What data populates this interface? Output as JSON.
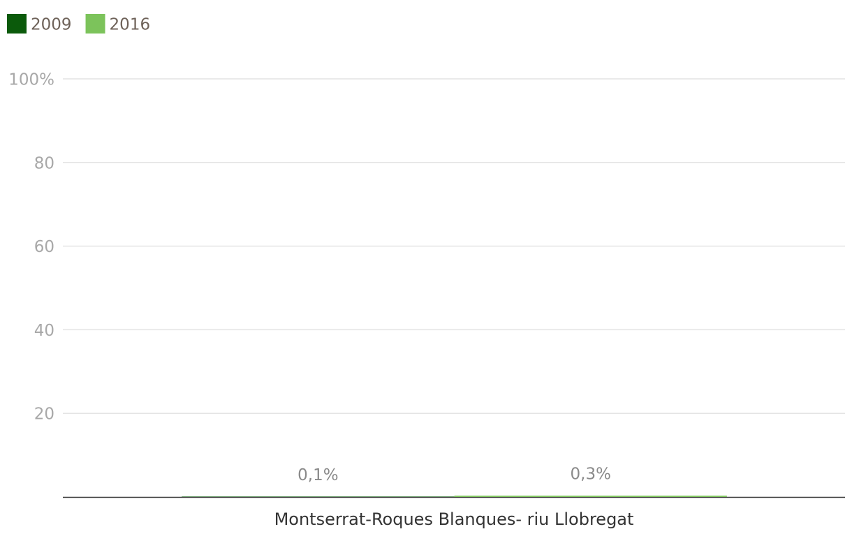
{
  "chart_data": {
    "type": "bar",
    "categories": [
      "Montserrat-Roques Blanques- riu Llobregat"
    ],
    "series": [
      {
        "name": "2009",
        "color": "#0b5a0b",
        "values": [
          0.1
        ],
        "value_labels": [
          "0,1%"
        ]
      },
      {
        "name": "2016",
        "color": "#7cc35b",
        "values": [
          0.3
        ],
        "value_labels": [
          "0,3%"
        ]
      }
    ],
    "ylim": [
      0,
      100
    ],
    "yticks": [
      20,
      40,
      60,
      80,
      {
        "value": 100,
        "label": "100%"
      }
    ],
    "grid": true
  }
}
